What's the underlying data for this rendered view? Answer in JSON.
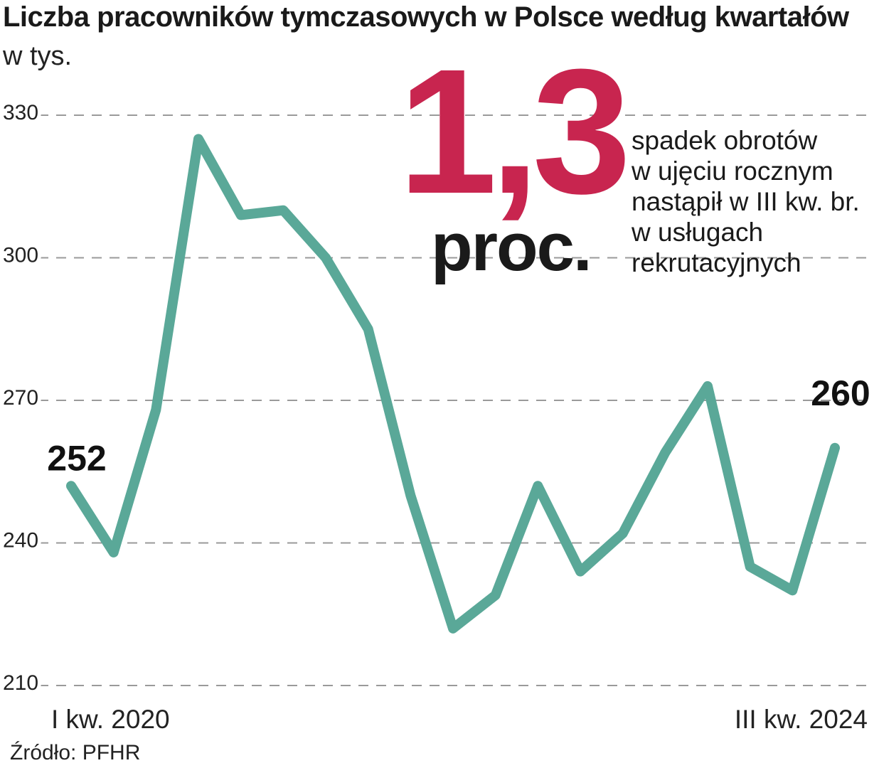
{
  "header": {
    "title": "Liczba pracowników tymczasowych w Polsce według kwartałów",
    "subtitle": "w tys."
  },
  "highlight": {
    "number": "1,3",
    "unit": "proc.",
    "color": "#c8254f",
    "description": [
      "spadek obrotów",
      "w ujęciu rocznym",
      "nastąpił w III kw. br.",
      "w usługach",
      "rekrutacyjnych"
    ]
  },
  "source": "Źródło: PFHR",
  "chart_data": {
    "type": "line",
    "x_start_label": "I kw. 2020",
    "x_end_label": "III kw. 2024",
    "yticks": [
      330,
      300,
      270,
      240,
      210
    ],
    "ylim": [
      210,
      330
    ],
    "grid": "dashed-horizontal",
    "line_color": "#5aa898",
    "values": [
      252,
      238,
      268,
      325,
      309,
      310,
      300,
      285,
      250,
      222,
      229,
      252,
      234,
      242,
      259,
      273,
      235,
      230,
      260
    ],
    "data_labels": [
      {
        "index": 0,
        "text": "252"
      },
      {
        "index": 18,
        "text": "260"
      }
    ]
  }
}
